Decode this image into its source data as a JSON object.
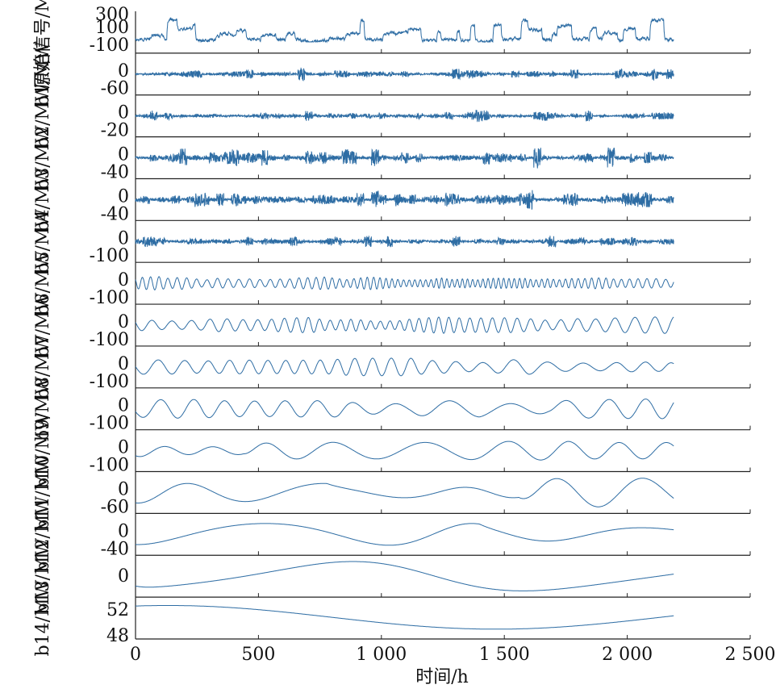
{
  "chart_data": {
    "type": "line",
    "title": "",
    "xlabel": "时间/h",
    "xlim": [
      0,
      2500
    ],
    "xticks": [
      0,
      500,
      1000,
      1500,
      2000,
      2500
    ],
    "xtick_labels": [
      "0",
      "500",
      "1 000",
      "1 500",
      "2 000",
      "2 500"
    ],
    "series_color": "#2e6da4",
    "n_points": 2190,
    "panels": [
      {
        "id": "original",
        "ylabel": "原始信号/MW",
        "ylabel_lines": [
          "原始",
          "信号/",
          "MW"
        ],
        "ylim": [
          -100,
          300
        ],
        "ytick_labels": [
          "300",
          "100",
          "-100"
        ],
        "y_range": [
          -100,
          300
        ],
        "baseline": 40,
        "kind": "raw",
        "seed": 3
      },
      {
        "id": "b1",
        "ylabel": "b1/MW",
        "ylim": [
          -60,
          60
        ],
        "ytick_labels": [
          "0",
          "-60"
        ],
        "y_range": [
          -60,
          60
        ],
        "kind": "noise",
        "amp": 7,
        "seed": 11
      },
      {
        "id": "b2",
        "ylabel": "b2/MW",
        "ylim": [
          -20,
          20
        ],
        "ytick_labels": [
          "0",
          "-20"
        ],
        "y_range": [
          -20,
          20
        ],
        "kind": "noise",
        "amp": 2,
        "seed": 12
      },
      {
        "id": "b3",
        "ylabel": "b3/MW",
        "ylim": [
          -40,
          40
        ],
        "ytick_labels": [
          "0",
          "-40"
        ],
        "y_range": [
          -40,
          40
        ],
        "kind": "noise",
        "amp": 7,
        "seed": 13
      },
      {
        "id": "b4",
        "ylabel": "b4/MW",
        "ylim": [
          -40,
          40
        ],
        "ytick_labels": [
          "0",
          "-40"
        ],
        "y_range": [
          -40,
          40
        ],
        "kind": "noise",
        "amp": 8,
        "seed": 14
      },
      {
        "id": "b5",
        "ylabel": "b5/MW",
        "ylim": [
          -100,
          100
        ],
        "ytick_labels": [
          "0",
          "-100"
        ],
        "y_range": [
          -100,
          100
        ],
        "kind": "noise",
        "amp": 14,
        "seed": 15
      },
      {
        "id": "b6",
        "ylabel": "b6/MW",
        "ylim": [
          -100,
          100
        ],
        "ytick_labels": [
          "0",
          "-100"
        ],
        "y_range": [
          -100,
          100
        ],
        "kind": "osc",
        "period_h": 24,
        "amp": 28,
        "seed": 16
      },
      {
        "id": "b7",
        "ylabel": "b7/MW",
        "ylim": [
          -100,
          100
        ],
        "ytick_labels": [
          "0",
          "-100"
        ],
        "y_range": [
          -100,
          100
        ],
        "kind": "osc",
        "period_h": 45,
        "amp": 34,
        "seed": 17
      },
      {
        "id": "b8",
        "ylabel": "b8/MW",
        "ylim": [
          -100,
          100
        ],
        "ytick_labels": [
          "0",
          "-100"
        ],
        "y_range": [
          -100,
          100
        ],
        "kind": "osc",
        "period_h": 80,
        "amp": 40,
        "seed": 18
      },
      {
        "id": "b9",
        "ylabel": "b9/MW",
        "ylim": [
          -100,
          100
        ],
        "ytick_labels": [
          "0",
          "-100"
        ],
        "y_range": [
          -100,
          100
        ],
        "kind": "osc",
        "period_h": 140,
        "amp": 42,
        "seed": 19
      },
      {
        "id": "b10",
        "ylabel": "b10/MW",
        "ylim": [
          -100,
          100
        ],
        "ytick_labels": [
          "0",
          "-100"
        ],
        "y_range": [
          -100,
          100
        ],
        "kind": "osc",
        "period_h": 220,
        "amp": 38,
        "seed": 20
      },
      {
        "id": "b11",
        "ylabel": "b11/MW",
        "ylim": [
          -60,
          60
        ],
        "ytick_labels": [
          "0",
          "-60"
        ],
        "y_range": [
          -60,
          60
        ],
        "kind": "osc",
        "period_h": 390,
        "amp": 36,
        "seed": 21
      },
      {
        "id": "b12",
        "ylabel": "b12/MW",
        "ylim": [
          -40,
          40
        ],
        "ytick_labels": [
          "0",
          "-40"
        ],
        "y_range": [
          -40,
          40
        ],
        "kind": "osc",
        "period_h": 700,
        "amp": 22,
        "seed": 22
      },
      {
        "id": "b13",
        "ylabel": "b13/MW",
        "ylim": [
          -20,
          20
        ],
        "ytick_labels": [
          "0"
        ],
        "y_range": [
          -20,
          20
        ],
        "kind": "osc",
        "period_h": 1500,
        "amp": 12,
        "seed": 23
      },
      {
        "id": "b14",
        "ylabel": "b14/MW",
        "ylim": [
          48,
          53
        ],
        "ytick_labels": [
          "52",
          "48"
        ],
        "y_range": [
          48,
          53
        ],
        "kind": "trend",
        "seed": 24
      }
    ]
  }
}
